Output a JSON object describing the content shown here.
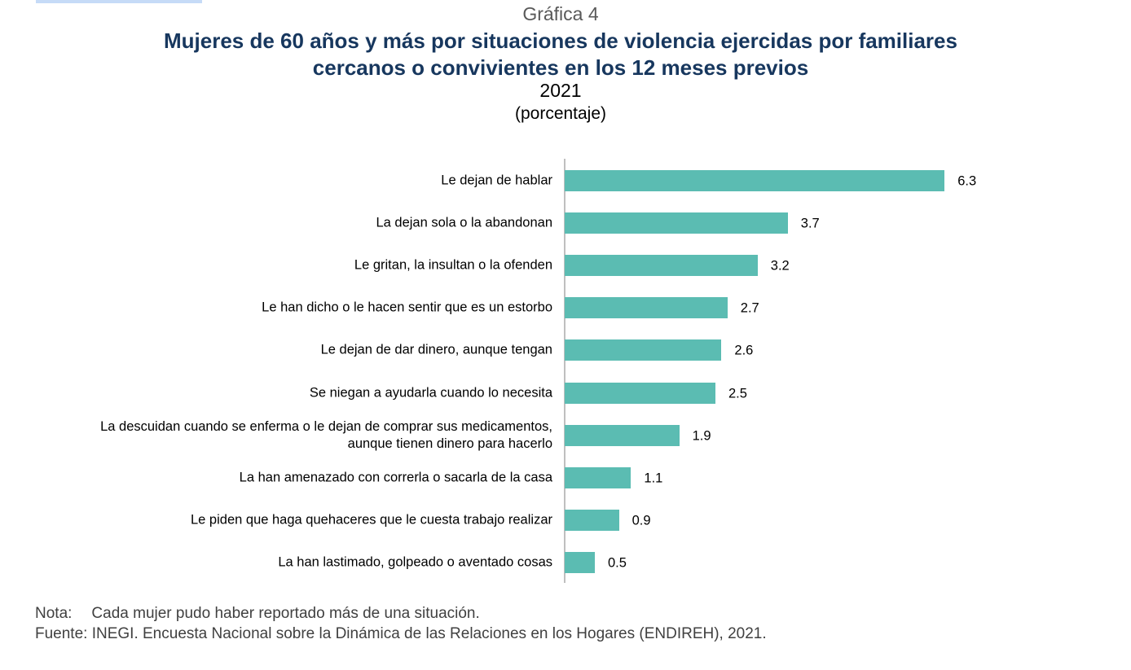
{
  "chart_data": {
    "type": "bar",
    "orientation": "horizontal",
    "label": "Gráfica 4",
    "title": "Mujeres de 60 años y más por situaciones de violencia ejercidas por familiares cercanos o convivientes en los 12 meses previos",
    "subtitle": "2021",
    "unit": "(porcentaje)",
    "categories": [
      "Le dejan de hablar",
      "La dejan sola o la abandonan",
      "Le gritan, la insultan o la ofenden",
      "Le han dicho o le hacen sentir que es un estorbo",
      "Le dejan de dar dinero, aunque tengan",
      "Se niegan a ayudarla cuando lo necesita",
      "La descuidan cuando se enferma o le dejan de comprar sus medicamentos,\naunque tienen dinero para hacerlo",
      "La han amenazado con correrla o sacarla de la casa",
      "Le piden que haga quehaceres que le cuesta trabajo realizar",
      "La han lastimado, golpeado o aventado cosas"
    ],
    "values": [
      6.3,
      3.7,
      3.2,
      2.7,
      2.6,
      2.5,
      1.9,
      1.1,
      0.9,
      0.5
    ],
    "color": "#5bbcb2",
    "note_label": "Nota:",
    "note": "Cada mujer pudo haber reportado más de una situación.",
    "source_label": "Fuente:",
    "source": "INEGI. Encuesta Nacional sobre la Dinámica de las Relaciones en los Hogares (ENDIREH), 2021."
  }
}
